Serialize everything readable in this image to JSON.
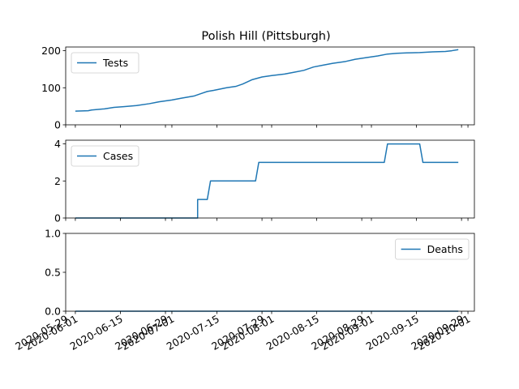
{
  "figure": {
    "title": "Polish Hill (Pittsburgh)",
    "series_color": "#1f77b4"
  },
  "chart_data": [
    {
      "type": "line",
      "name": "tests-panel",
      "series": [
        {
          "name": "Tests",
          "color": "#1f77b4"
        }
      ],
      "x": [
        "2020-06-01",
        "2020-06-05",
        "2020-06-06",
        "2020-06-10",
        "2020-06-13",
        "2020-06-16",
        "2020-06-20",
        "2020-06-24",
        "2020-06-27",
        "2020-07-01",
        "2020-07-04",
        "2020-07-08",
        "2020-07-10",
        "2020-07-12",
        "2020-07-14",
        "2020-07-18",
        "2020-07-21",
        "2020-07-23",
        "2020-07-26",
        "2020-07-29",
        "2020-08-01",
        "2020-08-05",
        "2020-08-08",
        "2020-08-11",
        "2020-08-14",
        "2020-08-17",
        "2020-08-20",
        "2020-08-24",
        "2020-08-27",
        "2020-08-31",
        "2020-09-03",
        "2020-09-06",
        "2020-09-09",
        "2020-09-12",
        "2020-09-16",
        "2020-09-20",
        "2020-09-24",
        "2020-09-26",
        "2020-09-28"
      ],
      "y": [
        37,
        38,
        40,
        43,
        47,
        49,
        52,
        57,
        62,
        67,
        72,
        78,
        84,
        90,
        93,
        100,
        104,
        110,
        122,
        129,
        133,
        137,
        142,
        147,
        156,
        161,
        166,
        171,
        177,
        182,
        186,
        191,
        193,
        194,
        195,
        197,
        198,
        200,
        203
      ],
      "yticks": [
        0,
        100,
        200
      ],
      "ylim": [
        0,
        210
      ],
      "legend": "upper left",
      "grid": false
    },
    {
      "type": "line",
      "name": "cases-panel",
      "series": [
        {
          "name": "Cases",
          "color": "#1f77b4"
        }
      ],
      "x": [
        "2020-06-01",
        "2020-07-09",
        "2020-07-09",
        "2020-07-12",
        "2020-07-13",
        "2020-07-27",
        "2020-07-28",
        "2020-09-05",
        "2020-09-06",
        "2020-09-16",
        "2020-09-17",
        "2020-09-28"
      ],
      "y": [
        0,
        0,
        1,
        1,
        2,
        2,
        3,
        3,
        4,
        4,
        3,
        3
      ],
      "yticks": [
        0,
        2,
        4
      ],
      "ylim": [
        0,
        4.2
      ],
      "legend": "upper left",
      "grid": false
    },
    {
      "type": "line",
      "name": "deaths-panel",
      "series": [
        {
          "name": "Deaths",
          "color": "#1f77b4"
        }
      ],
      "x": [
        "2020-06-01",
        "2020-09-28"
      ],
      "y": [
        0,
        0
      ],
      "yticks": [
        0.0,
        0.5,
        1.0
      ],
      "ytick_labels": [
        "0.0",
        "0.5",
        "1.0"
      ],
      "ylim": [
        0,
        1
      ],
      "legend": "upper right",
      "grid": false
    }
  ],
  "x_axis": {
    "xlim": [
      "2020-05-29",
      "2020-10-03"
    ],
    "ticks": [
      "2020-05-29",
      "2020-06-01",
      "2020-06-15",
      "2020-06-29",
      "2020-07-01",
      "2020-07-15",
      "2020-07-29",
      "2020-08-01",
      "2020-08-15",
      "2020-08-29",
      "2020-09-01",
      "2020-09-15",
      "2020-09-29",
      "2020-10-01"
    ]
  }
}
